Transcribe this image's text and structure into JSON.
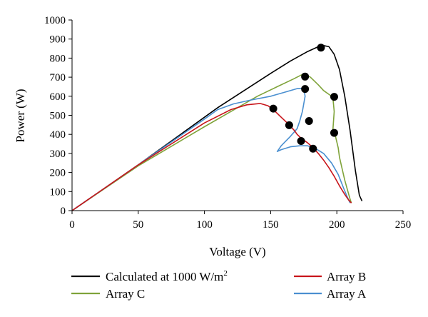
{
  "colors": {
    "calculated": "#000000",
    "array_b": "#c8151b",
    "array_c": "#7fa33a",
    "array_a": "#4a8fd0",
    "mpp_marker": "#000000",
    "axis": "#000000"
  },
  "chart_data": {
    "type": "line",
    "title": "",
    "xlabel": "Voltage (V)",
    "ylabel": "Power (W)",
    "xlim": [
      0,
      250
    ],
    "ylim": [
      0,
      1000
    ],
    "xticks": [
      "0",
      "50",
      "100",
      "150",
      "200",
      "250"
    ],
    "xtick_values": [
      0,
      50,
      100,
      150,
      200,
      250
    ],
    "yticks": [
      "0",
      "100",
      "200",
      "300",
      "400",
      "500",
      "600",
      "700",
      "800",
      "900",
      "1000"
    ],
    "ytick_values": [
      0,
      100,
      200,
      300,
      400,
      500,
      600,
      700,
      800,
      900,
      1000
    ],
    "grid": false,
    "legend_position": "bottom",
    "legend": {
      "calculated_prefix": "Calculated at 1000 W/m",
      "calculated_sup": "2",
      "array_b": "Array B",
      "array_c": "Array C",
      "array_a": "Array A"
    },
    "series": [
      {
        "name": "Calculated at 1000 W/m2",
        "color_key": "calculated",
        "x": [
          0,
          20,
          50,
          80,
          110,
          130,
          150,
          165,
          178,
          186,
          190,
          194,
          198,
          202,
          206,
          210,
          214,
          217,
          219
        ],
        "y": [
          0,
          95,
          240,
          390,
          540,
          630,
          720,
          785,
          835,
          860,
          866,
          860,
          820,
          740,
          600,
          420,
          210,
          80,
          50
        ]
      },
      {
        "name": "Array C",
        "color_key": "array_c",
        "x": [
          0,
          50,
          100,
          120,
          140,
          155,
          167,
          175,
          180,
          186,
          190,
          194,
          197,
          198,
          197,
          199,
          201,
          202,
          204,
          206,
          208,
          210,
          211
        ],
        "y": [
          0,
          235,
          440,
          520,
          600,
          650,
          690,
          718,
          700,
          660,
          630,
          610,
          595,
          520,
          420,
          390,
          330,
          280,
          220,
          160,
          110,
          60,
          40
        ]
      },
      {
        "name": "Array A",
        "color_key": "array_a",
        "x": [
          0,
          50,
          100,
          110,
          122,
          135,
          150,
          160,
          170,
          175,
          176,
          175,
          174,
          172,
          170,
          165,
          158,
          155,
          158,
          165,
          172,
          178,
          184,
          190,
          196,
          201,
          205,
          208,
          210
        ],
        "y": [
          0,
          240,
          480,
          530,
          560,
          580,
          600,
          620,
          640,
          642,
          600,
          560,
          520,
          470,
          430,
          390,
          340,
          310,
          320,
          335,
          340,
          340,
          325,
          300,
          250,
          190,
          120,
          70,
          40
        ]
      },
      {
        "name": "Array B",
        "color_key": "array_b",
        "x": [
          0,
          50,
          100,
          120,
          132,
          142,
          148,
          152,
          158,
          164,
          168,
          170,
          173,
          178,
          182,
          186,
          190,
          194,
          198,
          202,
          206,
          209,
          211
        ],
        "y": [
          0,
          240,
          460,
          530,
          555,
          562,
          550,
          530,
          490,
          450,
          420,
          400,
          380,
          355,
          330,
          300,
          265,
          225,
          180,
          130,
          85,
          55,
          40
        ]
      }
    ],
    "markers": {
      "name": "Maximum power points",
      "points": [
        {
          "x": 188,
          "y": 855
        },
        {
          "x": 176,
          "y": 703
        },
        {
          "x": 176,
          "y": 638
        },
        {
          "x": 198,
          "y": 597
        },
        {
          "x": 152,
          "y": 535
        },
        {
          "x": 179,
          "y": 470
        },
        {
          "x": 164,
          "y": 448
        },
        {
          "x": 198,
          "y": 408
        },
        {
          "x": 173,
          "y": 365
        },
        {
          "x": 182,
          "y": 325
        }
      ]
    }
  }
}
